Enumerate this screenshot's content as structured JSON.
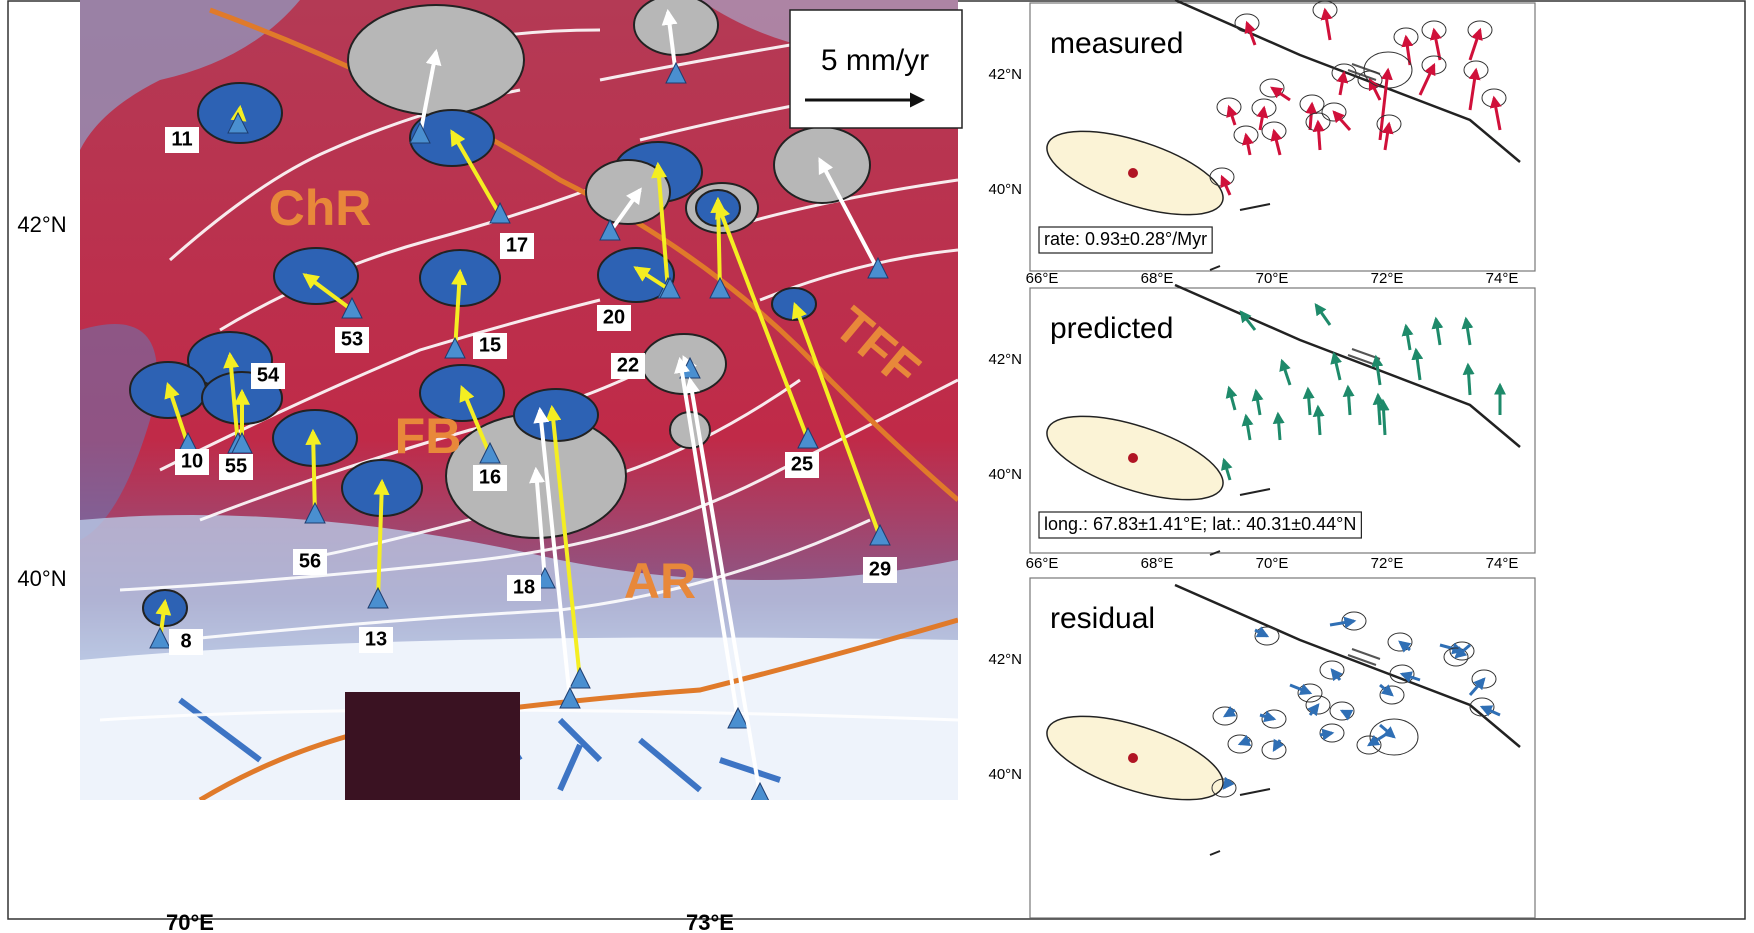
{
  "map": {
    "scale_label": "5 mm/yr",
    "latitude_labels": [
      "42°N",
      "40°N"
    ],
    "longitude_labels": [
      "70°E",
      "73°E"
    ],
    "region_labels": [
      "ChR",
      "FB",
      "AR",
      "TFF"
    ],
    "station_labels": [
      "11",
      "17",
      "53",
      "15",
      "20",
      "22",
      "54",
      "10",
      "55",
      "16",
      "56",
      "13",
      "8",
      "18",
      "25",
      "29"
    ]
  },
  "panels": [
    {
      "title": "measured",
      "annotation": "rate: 0.93±0.28°/Myr",
      "latitude_labels": [
        "42°N",
        "40°N"
      ],
      "longitude_labels": [
        "66°E",
        "68°E",
        "70°E",
        "72°E",
        "74°E"
      ]
    },
    {
      "title": "predicted",
      "annotation": "long.: 67.83±1.41°E; lat.: 40.31±0.44°N",
      "latitude_labels": [
        "42°N",
        "40°N"
      ],
      "longitude_labels": [
        "66°E",
        "68°E",
        "70°E",
        "72°E",
        "74°E"
      ]
    },
    {
      "title": "residual",
      "latitude_labels": [
        "42°N",
        "40°N"
      ]
    }
  ]
}
